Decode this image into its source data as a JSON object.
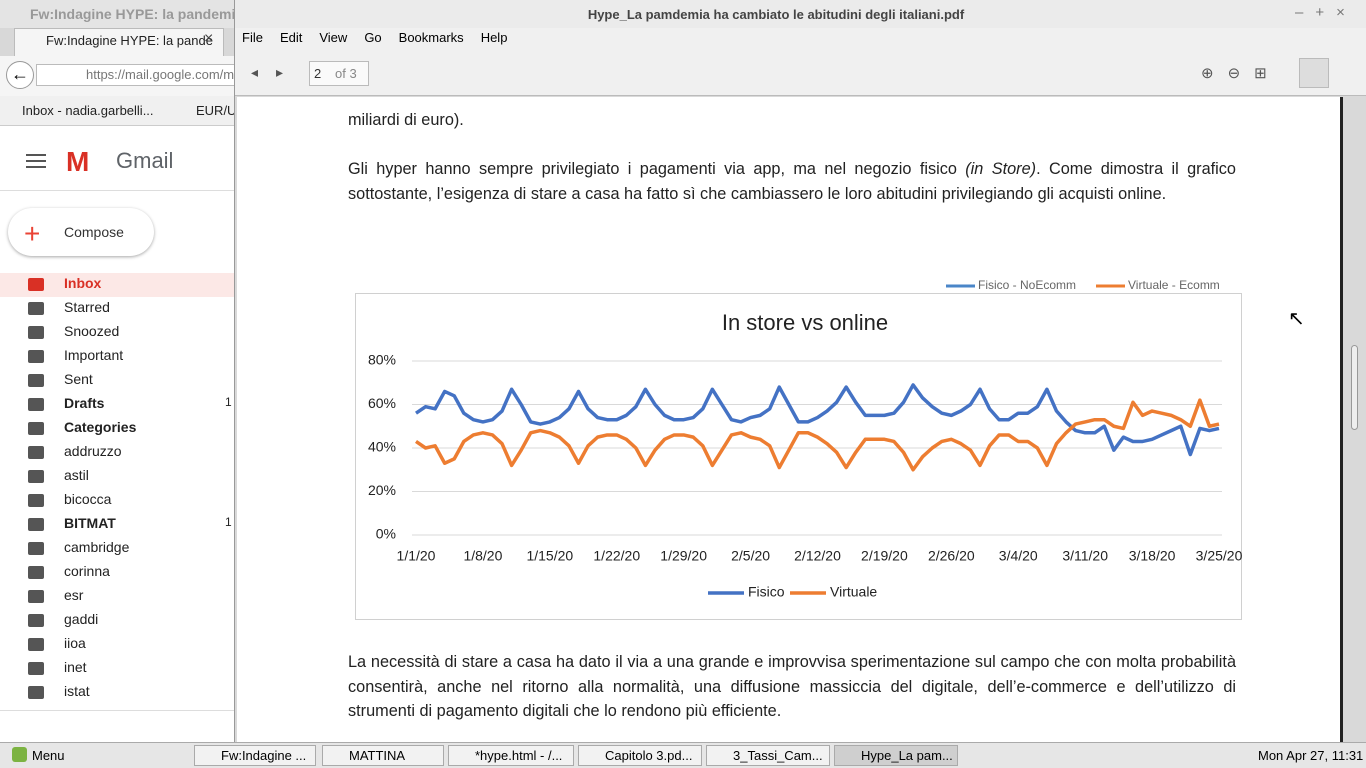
{
  "browser": {
    "window_title": "Fw:Indagine HYPE: la pandemia",
    "tab_title": "Fw:Indagine HYPE: la pande",
    "url": "https://mail.google.com/m",
    "bookmarks": [
      "Inbox - nadia.garbelli...",
      "EUR/U"
    ]
  },
  "gmail": {
    "logo": "Gmail",
    "compose": "Compose",
    "labels": [
      "Inbox",
      "Starred",
      "Snoozed",
      "Important",
      "Sent",
      "Drafts",
      "Categories",
      "addruzzo",
      "astil",
      "bicocca",
      "BITMAT",
      "cambridge",
      "corinna",
      "esr",
      "gaddi",
      "iioa",
      "inet",
      "istat"
    ],
    "counts": {
      "Drafts": "1",
      "BITMAT": "1"
    }
  },
  "pdf_viewer": {
    "title": "Hype_La pamdemia ha cambiato le abitudini degli italiani.pdf",
    "menu": [
      "File",
      "Edit",
      "View",
      "Go",
      "Bookmarks",
      "Help"
    ],
    "page": "2",
    "page_count": "of 3",
    "paragraphs": [
      {
        "text": "miliardi di euro)."
      },
      {
        "before": "Gli hyper hanno sempre privilegiato i pagamenti via app, ma nel negozio fisico ",
        "italic": "(in Store)",
        "after": ". Come dimostra il grafico sottostante, l’esigenza di stare a casa ha fatto sì che cambiassero le loro abitudini privilegiando gli acquisti online."
      },
      {
        "text": "La necessità di stare a casa ha dato il via a una grande e improvvisa sperimentazione sul campo che con molta probabilità consentirà, anche nel ritorno alla normalità, una diffusione massiccia del digitale, dell’e-commerce e dell’utilizzo di strumenti di pagamento digitali che lo rendono più efficiente."
      }
    ]
  },
  "chart_data": {
    "type": "line",
    "title": "In store vs online",
    "categories": [
      "1/1/20",
      null,
      null,
      null,
      null,
      null,
      null,
      "1/8/20",
      null,
      null,
      null,
      null,
      null,
      null,
      "1/15/20",
      null,
      null,
      null,
      null,
      null,
      null,
      "1/22/20",
      null,
      null,
      null,
      null,
      null,
      null,
      "1/29/20",
      null,
      null,
      null,
      null,
      null,
      null,
      "2/5/20",
      null,
      null,
      null,
      null,
      null,
      null,
      "2/12/20",
      null,
      null,
      null,
      null,
      null,
      null,
      "2/19/20",
      null,
      null,
      null,
      null,
      null,
      null,
      "2/26/20",
      null,
      null,
      null,
      null,
      null,
      null,
      "3/4/20",
      null,
      null,
      null,
      null,
      null,
      null,
      "3/11/20",
      null,
      null,
      null,
      null,
      null,
      null,
      "3/18/20",
      null,
      null,
      null,
      null,
      null,
      null,
      "3/25/20"
    ],
    "series": [
      {
        "name": "Fisico",
        "color": "#4472c4",
        "values": [
          56,
          59,
          58,
          66,
          64,
          56,
          53,
          52,
          53,
          57,
          67,
          60,
          52,
          51,
          52,
          54,
          58,
          66,
          58,
          54,
          53,
          53,
          55,
          59,
          67,
          60,
          55,
          53,
          53,
          54,
          58,
          67,
          60,
          53,
          52,
          54,
          55,
          58,
          68,
          60,
          52,
          52,
          54,
          57,
          61,
          68,
          61,
          55,
          55,
          55,
          56,
          61,
          69,
          63,
          59,
          56,
          55,
          57,
          60,
          67,
          58,
          53,
          53,
          56,
          56,
          59,
          67,
          57,
          52,
          48,
          47,
          47,
          50,
          39,
          45,
          43,
          43,
          44,
          46,
          48,
          50,
          37,
          49,
          48,
          49
        ]
      },
      {
        "name": "Virtuale",
        "color": "#ed7d31",
        "values": [
          43,
          40,
          41,
          33,
          35,
          43,
          46,
          47,
          46,
          42,
          32,
          39,
          47,
          48,
          47,
          45,
          41,
          33,
          41,
          45,
          46,
          46,
          44,
          40,
          32,
          39,
          44,
          46,
          46,
          45,
          41,
          32,
          39,
          46,
          47,
          45,
          44,
          41,
          31,
          39,
          47,
          47,
          45,
          42,
          38,
          31,
          38,
          44,
          44,
          44,
          43,
          38,
          30,
          36,
          40,
          43,
          44,
          42,
          39,
          32,
          41,
          46,
          46,
          43,
          43,
          40,
          32,
          42,
          47,
          51,
          52,
          53,
          53,
          50,
          49,
          61,
          55,
          57,
          56,
          55,
          53,
          50,
          62,
          50,
          51
        ]
      }
    ],
    "ylim": [
      0,
      80
    ],
    "yticks": [
      {
        "value": 0,
        "label": "0%"
      },
      {
        "value": 20,
        "label": "20%"
      },
      {
        "value": 40,
        "label": "40%"
      },
      {
        "value": 60,
        "label": "60%"
      },
      {
        "value": 80,
        "label": "80%"
      }
    ],
    "grid": true,
    "legend": "bottom",
    "overlay_legend": [
      {
        "name": "Fisico - NoEcomm",
        "color": "#4a86c8"
      },
      {
        "name": "Virtuale - Ecomm",
        "color": "#ed7d31"
      }
    ]
  },
  "taskbar": {
    "menu": "Menu",
    "items": [
      "Fw:Indagine ...",
      "MATTINA",
      "*hype.html - /...",
      "Capitolo 3.pd...",
      "3_Tassi_Cam...",
      "Hype_La pam..."
    ],
    "clock": "Mon Apr 27, 11:31"
  }
}
